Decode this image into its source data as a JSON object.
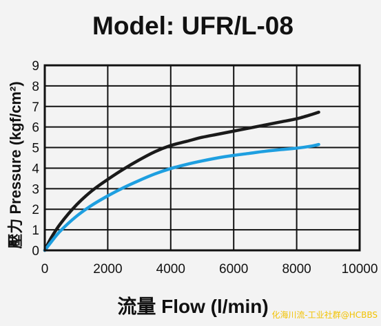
{
  "chart_data": {
    "type": "line",
    "title": "Model: UFR/L-08",
    "xlabel": "流量 Flow (l/min)",
    "ylabel": "壓力 Pressure (kgf/cm²)",
    "xlim": [
      0,
      10000
    ],
    "ylim": [
      0,
      9
    ],
    "x_ticks": [
      "0",
      "2000",
      "4000",
      "6000",
      "8000",
      "10000"
    ],
    "y_ticks": [
      "0",
      "1",
      "2",
      "3",
      "4",
      "5",
      "6",
      "7",
      "8",
      "9"
    ],
    "grid": true,
    "legend": "none",
    "series": [
      {
        "color": "#1a1a1a",
        "x": [
          0,
          200,
          500,
          1000,
          1500,
          2000,
          2500,
          3000,
          3500,
          4000,
          4500,
          5000,
          5500,
          6000,
          6500,
          7000,
          7500,
          8000,
          8500,
          8700
        ],
        "y": [
          0,
          0.6,
          1.3,
          2.2,
          2.9,
          3.45,
          3.95,
          4.4,
          4.8,
          5.1,
          5.3,
          5.5,
          5.65,
          5.8,
          5.95,
          6.1,
          6.25,
          6.4,
          6.62,
          6.72
        ]
      },
      {
        "color": "#1e9fe0",
        "x": [
          0,
          200,
          500,
          1000,
          1500,
          2000,
          2500,
          3000,
          3500,
          4000,
          4500,
          5000,
          5500,
          6000,
          6500,
          7000,
          7500,
          8000,
          8500,
          8700
        ],
        "y": [
          0,
          0.4,
          0.95,
          1.65,
          2.2,
          2.65,
          3.05,
          3.4,
          3.72,
          3.98,
          4.18,
          4.35,
          4.5,
          4.62,
          4.72,
          4.82,
          4.9,
          4.97,
          5.08,
          5.15
        ]
      }
    ]
  },
  "watermark": "化海川流-工业社群@HCBBS"
}
